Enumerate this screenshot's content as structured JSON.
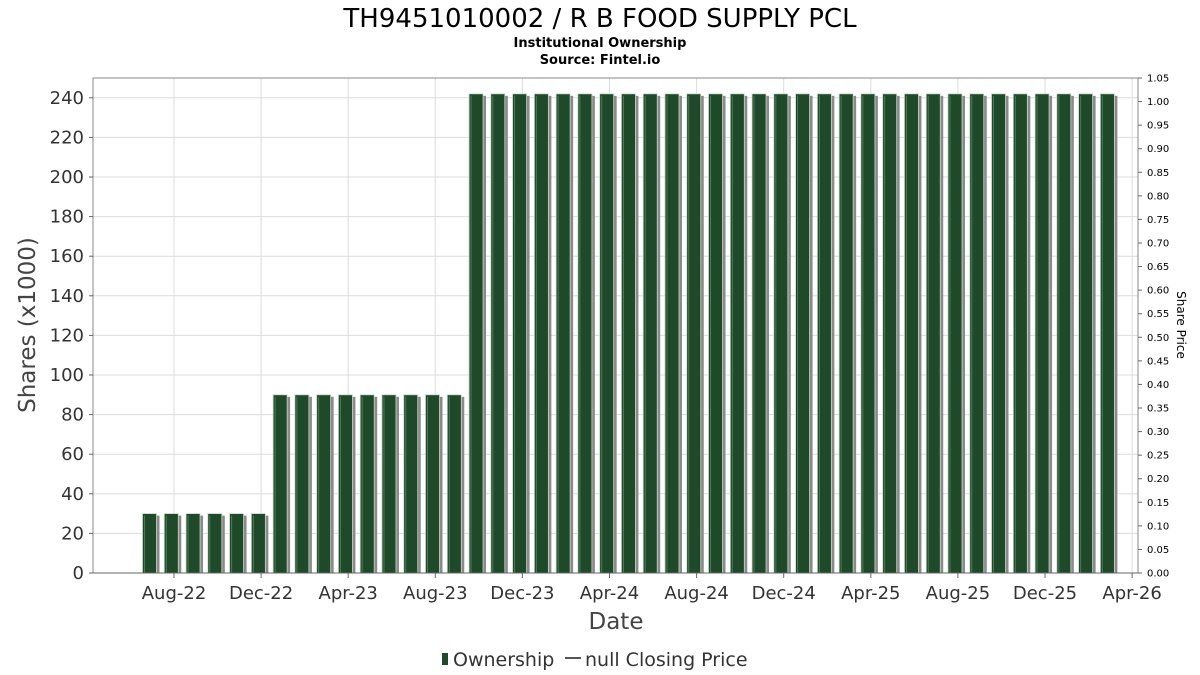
{
  "chart_data": {
    "type": "bar",
    "title": "TH9451010002 / R B FOOD SUPPLY PCL",
    "subtitle_1": "Institutional Ownership",
    "subtitle_2": "Source: Fintel.io",
    "xlabel": "Date",
    "ylabel": "Shares (x1000)",
    "y2label": "Share Price",
    "ylim": [
      0,
      250
    ],
    "y2lim": [
      0,
      1.05
    ],
    "yticks": [
      0,
      20,
      40,
      60,
      80,
      100,
      120,
      140,
      160,
      180,
      200,
      220,
      240
    ],
    "y2ticks": [
      "0.00",
      "0.05",
      "0.10",
      "0.15",
      "0.20",
      "0.25",
      "0.30",
      "0.35",
      "0.40",
      "0.45",
      "0.50",
      "0.55",
      "0.60",
      "0.65",
      "0.70",
      "0.75",
      "0.80",
      "0.85",
      "0.90",
      "0.95",
      "1.00",
      "1.05"
    ],
    "xticks": [
      "Aug-22",
      "Dec-22",
      "Apr-23",
      "Aug-23",
      "Dec-23",
      "Apr-24",
      "Aug-24",
      "Dec-24",
      "Apr-25",
      "Aug-25",
      "Dec-25",
      "Apr-26"
    ],
    "series": [
      {
        "name": "Ownership",
        "color": "#1e4a2a",
        "values": [
          30,
          30,
          30,
          30,
          30,
          30,
          90,
          90,
          90,
          90,
          90,
          90,
          90,
          90,
          90,
          242,
          242,
          242,
          242,
          242,
          242,
          242,
          242,
          242,
          242,
          242,
          242,
          242,
          242,
          242,
          242,
          242,
          242,
          242,
          242,
          242,
          242,
          242,
          242,
          242,
          242,
          242,
          242,
          242,
          242
        ]
      },
      {
        "name": "null Closing Price",
        "color": "#555555",
        "values": []
      }
    ],
    "legend_position": "bottom",
    "grid": true
  }
}
